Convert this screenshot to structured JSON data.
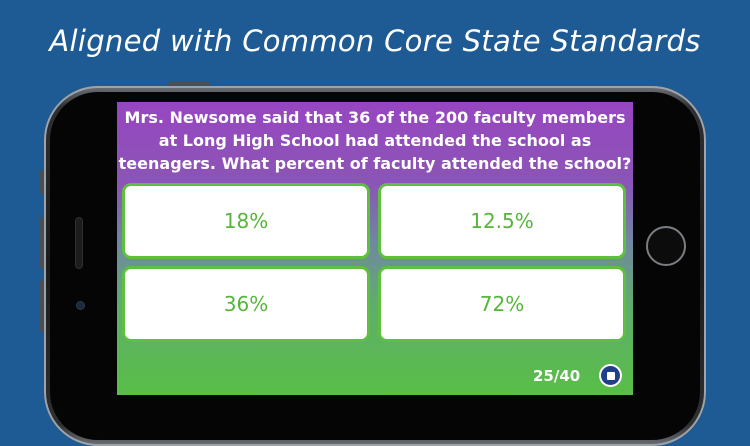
{
  "headline": "Aligned with Common Core State Standards",
  "quiz": {
    "question_lines": [
      "Mrs. Newsome said that 36 of the 200 faculty members",
      "at Long High School had attended the school as",
      "teenagers. What percent of faculty attended the school?"
    ],
    "answers": [
      "18%",
      "12.5%",
      "36%",
      "72%"
    ],
    "progress": "25/40"
  },
  "icons": {
    "stop": "stop-icon"
  },
  "colors": {
    "background": "#1e5a93",
    "accent_green": "#56b53b",
    "purple": "#9746c1"
  }
}
